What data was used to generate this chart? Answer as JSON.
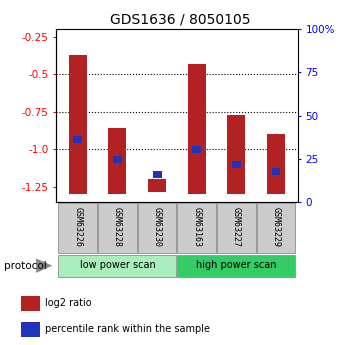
{
  "title": "GDS1636 / 8050105",
  "samples": [
    "GSM63226",
    "GSM63228",
    "GSM63230",
    "GSM63163",
    "GSM63227",
    "GSM63229"
  ],
  "bar_top": [
    -0.37,
    -0.855,
    -1.2,
    -0.43,
    -0.77,
    -0.9
  ],
  "bar_bottom": [
    -1.3,
    -1.3,
    -1.285,
    -1.3,
    -1.3,
    -1.3
  ],
  "blue_dot_y": [
    -0.935,
    -1.07,
    -1.17,
    -1.0,
    -1.1,
    -1.15
  ],
  "ylim_left": [
    -1.35,
    -0.2
  ],
  "ylim_right": [
    0,
    100
  ],
  "left_ticks": [
    -0.25,
    -0.5,
    -0.75,
    -1.0,
    -1.25
  ],
  "right_ticks": [
    0,
    25,
    50,
    75,
    100
  ],
  "right_tick_labels": [
    "0",
    "25",
    "50",
    "75",
    "100%"
  ],
  "bar_color": "#B22222",
  "blue_color": "#2233BB",
  "protocol_groups": [
    {
      "label": "low power scan",
      "indices": [
        0,
        1,
        2
      ],
      "color": "#AAEEBB"
    },
    {
      "label": "high power scan",
      "indices": [
        3,
        4,
        5
      ],
      "color": "#33CC66"
    }
  ],
  "protocol_label": "protocol",
  "legend_items": [
    {
      "color": "#B22222",
      "label": "log2 ratio"
    },
    {
      "color": "#2233BB",
      "label": "percentile rank within the sample"
    }
  ],
  "sample_box_color": "#CCCCCC",
  "dotted_line_y": [
    -0.5,
    -0.75,
    -1.0
  ],
  "bg_color": "#FFFFFF"
}
